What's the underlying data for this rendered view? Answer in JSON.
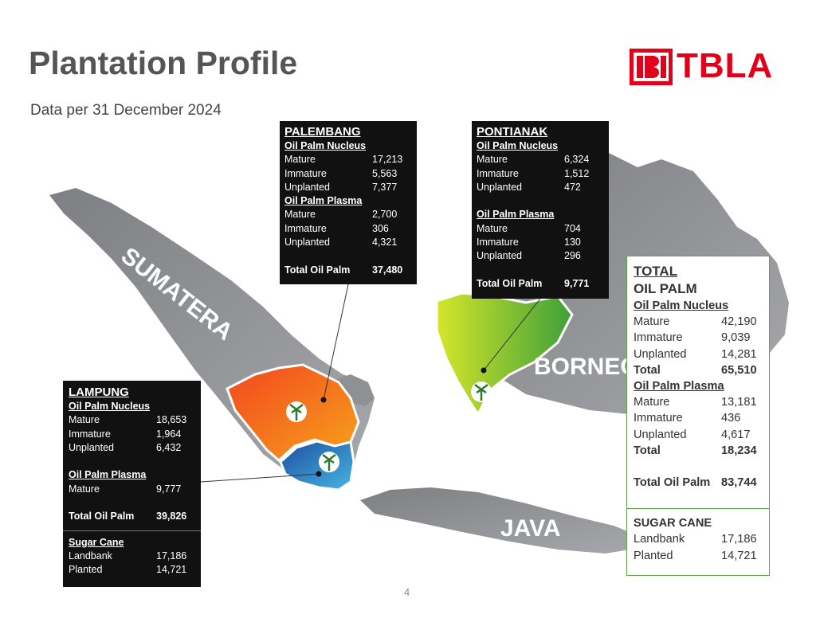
{
  "title": "Plantation Profile",
  "subtitle": "Data per 31 December 2024",
  "logo": {
    "text": "TBLA",
    "color": "#e3001b"
  },
  "map_labels": {
    "sumatera": "SUMATERA",
    "borneo": "BORNEO",
    "java": "JAVA"
  },
  "palembang": {
    "name": "PALEMBANG",
    "nucleus_heading": "Oil Palm Nucleus",
    "nucleus": [
      {
        "label": "Mature",
        "value": "17,213"
      },
      {
        "label": "Immature",
        "value": "5,563"
      },
      {
        "label": "Unplanted",
        "value": "7,377"
      }
    ],
    "plasma_heading": "Oil Palm Plasma",
    "plasma": [
      {
        "label": "Mature",
        "value": "2,700"
      },
      {
        "label": "Immature",
        "value": "306"
      },
      {
        "label": "Unplanted",
        "value": "4,321"
      }
    ],
    "total_label": "Total Oil Palm",
    "total_value": "37,480"
  },
  "pontianak": {
    "name": "PONTIANAK",
    "nucleus_heading": "Oil Palm Nucleus",
    "nucleus": [
      {
        "label": "Mature",
        "value": "6,324"
      },
      {
        "label": "Immature",
        "value": "1,512"
      },
      {
        "label": "Unplanted",
        "value": "472"
      }
    ],
    "plasma_heading": "Oil Palm Plasma",
    "plasma": [
      {
        "label": "Mature",
        "value": "704"
      },
      {
        "label": "Immature",
        "value": "130"
      },
      {
        "label": "Unplanted",
        "value": "296"
      }
    ],
    "total_label": "Total Oil Palm",
    "total_value": "9,771"
  },
  "lampung": {
    "name": "LAMPUNG",
    "nucleus_heading": "Oil Palm Nucleus",
    "nucleus": [
      {
        "label": "Mature",
        "value": "18,653"
      },
      {
        "label": "Immature",
        "value": "1,964"
      },
      {
        "label": "Unplanted",
        "value": "6,432"
      }
    ],
    "plasma_heading": "Oil Palm Plasma",
    "plasma": [
      {
        "label": "Mature",
        "value": "9,777"
      }
    ],
    "total_label": "Total Oil Palm",
    "total_value": "39,826",
    "sugar_heading": "Sugar Cane",
    "sugar": [
      {
        "label": "Landbank",
        "value": "17,186"
      },
      {
        "label": "Planted",
        "value": "14,721"
      }
    ]
  },
  "total": {
    "heading_line1": "TOTAL",
    "heading_line2": "OIL PALM",
    "nucleus_heading": "Oil Palm Nucleus",
    "nucleus": [
      {
        "label": "Mature",
        "value": "42,190"
      },
      {
        "label": "Immature",
        "value": "9,039"
      },
      {
        "label": "Unplanted",
        "value": "14,281"
      }
    ],
    "nucleus_total_label": "Total",
    "nucleus_total_value": "65,510",
    "plasma_heading": "Oil Palm Plasma",
    "plasma": [
      {
        "label": "Mature",
        "value": "13,181"
      },
      {
        "label": "Immature",
        "value": "436"
      },
      {
        "label": "Unplanted",
        "value": "4,617"
      }
    ],
    "plasma_total_label": "Total",
    "plasma_total_value": "18,234",
    "grand_total_label": "Total Oil Palm",
    "grand_total_value": "83,744",
    "sugar_heading": "SUGAR CANE",
    "sugar": [
      {
        "label": "Landbank",
        "value": "17,186"
      },
      {
        "label": "Planted",
        "value": "14,721"
      }
    ]
  },
  "page_number": "4",
  "colors": {
    "island": "#8f9093",
    "island_dark": "#6e6f72",
    "palembang_region": "#f07a1a",
    "lampung_region": "#2f74c0",
    "pontianak_region": "#7fbf3a",
    "border_green": "#5aa845"
  }
}
